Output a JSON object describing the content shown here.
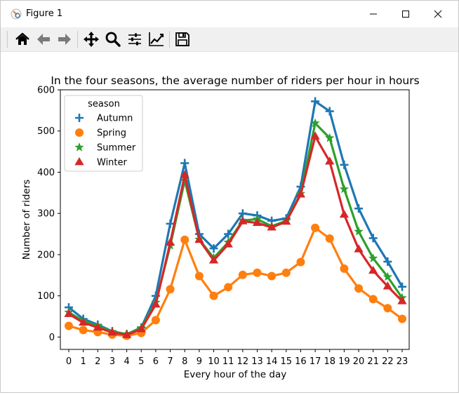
{
  "window": {
    "title": "Figure 1",
    "icons": [
      "figure-icon",
      "minimize-icon",
      "maximize-icon",
      "close-icon"
    ]
  },
  "toolbar": {
    "buttons": [
      {
        "name": "home",
        "icon": "home-icon"
      },
      {
        "name": "back",
        "icon": "arrow-left-icon"
      },
      {
        "name": "forward",
        "icon": "arrow-right-icon"
      },
      {
        "name": "pan",
        "icon": "move-icon"
      },
      {
        "name": "zoom",
        "icon": "magnifier-icon"
      },
      {
        "name": "configure-subplots",
        "icon": "sliders-icon"
      },
      {
        "name": "edit-axis",
        "icon": "line-chart-icon"
      },
      {
        "name": "save",
        "icon": "floppy-disk-icon"
      }
    ]
  },
  "chart_data": {
    "type": "line",
    "title": "In the four seasons, the average number of riders per hour in hours",
    "xlabel": "Every hour of the day",
    "ylabel": "Number of riders",
    "categories": [
      "0",
      "1",
      "2",
      "3",
      "4",
      "5",
      "6",
      "7",
      "8",
      "9",
      "10",
      "11",
      "12",
      "13",
      "14",
      "15",
      "16",
      "17",
      "18",
      "19",
      "20",
      "21",
      "22",
      "23"
    ],
    "yticks": [
      "0",
      "100",
      "200",
      "300",
      "400",
      "500",
      "600"
    ],
    "ylim": [
      -30,
      600
    ],
    "legend": {
      "title": "season",
      "placement": "upper-left"
    },
    "grid": false,
    "series": [
      {
        "name": "Autumn",
        "color": "#1f77b4",
        "marker": "plus",
        "values": [
          72,
          44,
          30,
          14,
          7,
          23,
          100,
          275,
          422,
          250,
          215,
          250,
          300,
          295,
          282,
          288,
          365,
          572,
          548,
          418,
          312,
          240,
          183,
          122
        ]
      },
      {
        "name": "Spring",
        "color": "#ff7f0e",
        "marker": "circle",
        "values": [
          27,
          17,
          12,
          6,
          3,
          10,
          41,
          116,
          236,
          148,
          100,
          121,
          151,
          156,
          148,
          156,
          182,
          265,
          239,
          166,
          118,
          92,
          70,
          44
        ]
      },
      {
        "name": "Summer",
        "color": "#2ca02c",
        "marker": "star",
        "values": [
          60,
          39,
          27,
          13,
          7,
          22,
          84,
          222,
          380,
          237,
          192,
          230,
          283,
          286,
          269,
          282,
          348,
          519,
          483,
          359,
          256,
          191,
          146,
          95
        ]
      },
      {
        "name": "Winter",
        "color": "#d62728",
        "marker": "triangle",
        "values": [
          56,
          35,
          23,
          11,
          5,
          19,
          79,
          229,
          393,
          236,
          186,
          225,
          281,
          277,
          266,
          280,
          346,
          487,
          426,
          297,
          213,
          161,
          123,
          87
        ]
      }
    ]
  }
}
